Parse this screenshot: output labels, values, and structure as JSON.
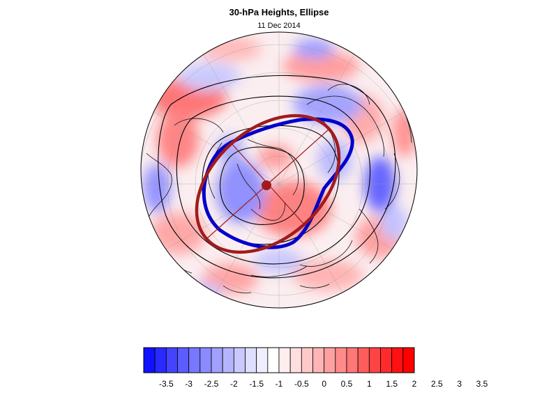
{
  "title": "30-hPa Heights, Ellipse",
  "date": "11 Dec 2014",
  "colorbar": {
    "labels": [
      "-3.5",
      "-3",
      "-2.5",
      "-2",
      "-1.5",
      "-1",
      "-0.5",
      "0",
      "0.5",
      "1",
      "1.5",
      "2",
      "2.5",
      "3",
      "3.5"
    ],
    "colors": [
      "#1111ff",
      "#2a2aff",
      "#4444ff",
      "#5d5dff",
      "#7777ff",
      "#8b8bff",
      "#a0a0ff",
      "#b5b5ff",
      "#c9c9ff",
      "#dedeff",
      "#eeeeff",
      "#ffffff",
      "#ffeeee",
      "#ffdede",
      "#ffc9c9",
      "#ffb5b5",
      "#ffa0a0",
      "#ff8b8b",
      "#ff7777",
      "#ff5d5d",
      "#ff4444",
      "#ff2a2a",
      "#ff1111",
      "#ff0000"
    ]
  },
  "colors": {
    "polar_vortex_edge": "#0000cc",
    "ellipse": "#a01c1c",
    "height_contours": "#000000",
    "coastlines": "#111111"
  }
}
